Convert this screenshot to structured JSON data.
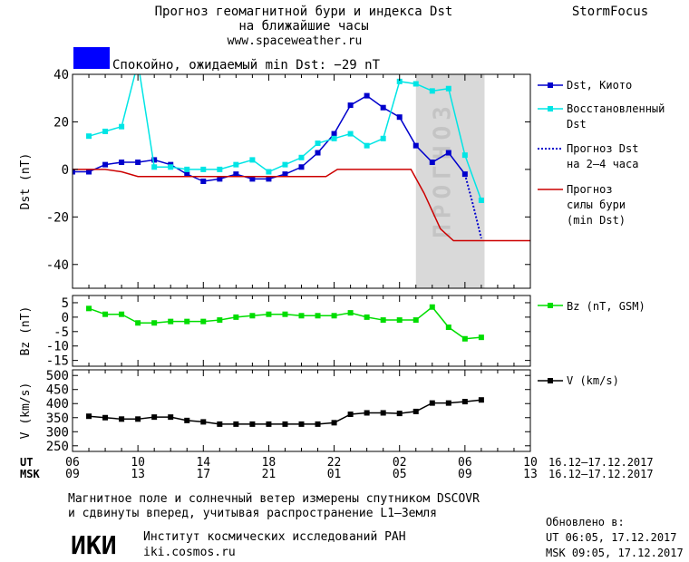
{
  "header": {
    "title_line1": "Прогноз геомагнитной бури и индекса Dst",
    "title_line2": "на ближайшие часы",
    "url": "www.spaceweather.ru",
    "brand": "StormFocus",
    "status_text": "Спокойно, ожидаемый min Dst: −29 nT",
    "status_color": "#0000ff"
  },
  "footer": {
    "note_line1": "Магнитное поле и солнечный ветер измерены спутником DSCOVR",
    "note_line2": "и сдвинуты вперед, учитывая распространение L1–Земля",
    "logo_text": "ИКИ",
    "institute": "Институт космических исследований РАН",
    "institute_url": "iki.cosmos.ru",
    "updated_label": "Обновлено в:",
    "updated_ut": "UT  06:05, 17.12.2017",
    "updated_msk": "MSK 09:05, 17.12.2017"
  },
  "chart_data": [
    {
      "type": "line",
      "panel": "dst",
      "ylabel": "Dst (nT)",
      "ylim": [
        -50,
        40
      ],
      "yticks": [
        40,
        20,
        0,
        -20,
        -40
      ],
      "xlim": [
        6.0,
        34.0
      ],
      "forecast_band": {
        "x": [
          27.0,
          31.2
        ],
        "label": "ПРОГНОЗ",
        "color": "#d9d9d9"
      },
      "series": [
        {
          "name": "Dst, Киото",
          "color": "#0000cc",
          "marker": "square",
          "x": [
            6.0,
            7.0,
            8.0,
            9.0,
            10.0,
            11.0,
            12.0,
            13.0,
            14.0,
            15.0,
            16.0,
            17.0,
            18.0,
            19.0,
            20.0,
            21.0,
            22.0,
            23.0,
            24.0,
            25.0,
            26.0,
            27.0,
            28.0,
            29.0,
            30.0
          ],
          "values": [
            -1,
            -1,
            2,
            3,
            3,
            4,
            2,
            -2,
            -5,
            -4,
            -2,
            -4,
            -4,
            -2,
            1,
            7,
            15,
            27,
            31,
            26,
            22,
            10,
            3,
            7,
            -2
          ]
        },
        {
          "name": "Восстановленный Dst",
          "color": "#00e5e5",
          "marker": "square",
          "x": [
            7.0,
            8.0,
            9.0,
            10.0,
            11.0,
            12.0,
            13.0,
            14.0,
            15.0,
            16.0,
            17.0,
            18.0,
            19.0,
            20.0,
            21.0,
            22.0,
            23.0,
            24.0,
            25.0,
            26.0,
            27.0,
            28.0,
            29.0,
            30.0,
            31.0
          ],
          "values": [
            14,
            16,
            18,
            45,
            1,
            1,
            0,
            0,
            0,
            2,
            4,
            -1,
            2,
            5,
            11,
            13,
            15,
            10,
            13,
            37,
            36,
            33,
            34,
            6,
            -13
          ]
        },
        {
          "name": "Прогноз Dst на 2-4 часа",
          "color": "#0000cc",
          "dashed": true,
          "x": [
            30.0,
            30.5,
            31.0
          ],
          "values": [
            -2,
            -15,
            -29
          ]
        },
        {
          "name": "Прогноз силы бури (min Dst)",
          "color": "#cc0000",
          "x": [
            6.0,
            8.0,
            9.0,
            10.0,
            21.5,
            22.2,
            26.7,
            27.5,
            28.5,
            29.3,
            30.0,
            34.0
          ],
          "values": [
            0,
            0,
            -1,
            -3,
            -3,
            0,
            0,
            -10,
            -25,
            -30,
            -30,
            -30
          ]
        }
      ],
      "legend": [
        "Dst, Киото",
        "Восстановленный",
        "Dst",
        "Прогноз Dst",
        "на 2–4 часа",
        "Прогноз",
        "силы бури",
        "(min Dst)"
      ]
    },
    {
      "type": "line",
      "panel": "bz",
      "ylabel": "Bz (nT)",
      "ylim": [
        -17,
        7.5
      ],
      "yticks": [
        5,
        0,
        -5,
        -10,
        -15
      ],
      "series": [
        {
          "name": "Bz (nT, GSM)",
          "color": "#00dd00",
          "marker": "square",
          "x": [
            7.0,
            8.0,
            9.0,
            10.0,
            11.0,
            12.0,
            13.0,
            14.0,
            15.0,
            16.0,
            17.0,
            18.0,
            19.0,
            20.0,
            21.0,
            22.0,
            23.0,
            24.0,
            25.0,
            26.0,
            27.0,
            28.0,
            29.0,
            30.0,
            31.0
          ],
          "values": [
            3,
            1,
            1,
            -2,
            -2,
            -1.5,
            -1.5,
            -1.5,
            -1,
            0,
            0.5,
            1,
            1,
            0.5,
            0.5,
            0.5,
            1.5,
            0,
            -1,
            -1,
            -1,
            3.5,
            -3.5,
            -7.5,
            -7
          ]
        }
      ],
      "legend": [
        "Bz (nT, GSM)"
      ]
    },
    {
      "type": "line",
      "panel": "v",
      "ylabel": "V (km/s)",
      "ylim": [
        230,
        520
      ],
      "yticks": [
        500,
        450,
        400,
        350,
        300,
        250
      ],
      "series": [
        {
          "name": "V (km/s)",
          "color": "#000000",
          "marker": "square",
          "x": [
            7.0,
            8.0,
            9.0,
            10.0,
            11.0,
            12.0,
            13.0,
            14.0,
            15.0,
            16.0,
            17.0,
            18.0,
            19.0,
            20.0,
            21.0,
            22.0,
            23.0,
            24.0,
            25.0,
            26.0,
            27.0,
            28.0,
            29.0,
            30.0,
            31.0
          ],
          "values": [
            355,
            350,
            345,
            345,
            352,
            352,
            340,
            335,
            327,
            327,
            327,
            327,
            327,
            327,
            327,
            332,
            362,
            367,
            367,
            365,
            372,
            402,
            402,
            407,
            413
          ]
        }
      ],
      "legend": [
        "V (km/s)"
      ]
    }
  ],
  "x_axis": {
    "ut_label": "UT",
    "msk_label": "MSK",
    "ut_ticks": [
      "06",
      "10",
      "14",
      "18",
      "22",
      "02",
      "06",
      "10"
    ],
    "msk_ticks": [
      "09",
      "13",
      "17",
      "21",
      "01",
      "05",
      "09",
      "13"
    ],
    "tick_positions": [
      6,
      10,
      14,
      18,
      22,
      26,
      30,
      34
    ],
    "date_range_ut": "16.12–17.12.2017",
    "date_range_msk": "16.12–17.12.2017"
  }
}
